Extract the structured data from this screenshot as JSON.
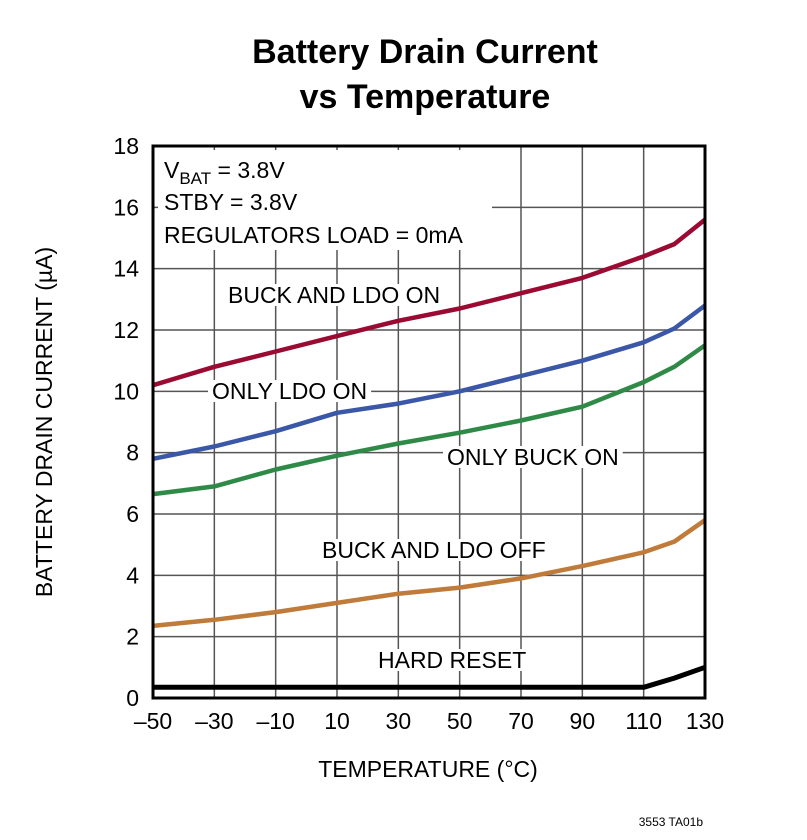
{
  "chart_data": {
    "type": "line",
    "title": [
      "Battery Drain Current",
      "vs Temperature"
    ],
    "xlabel": "TEMPERATURE (°C)",
    "ylabel": "BATTERY DRAIN CURRENT (µA)",
    "xlim": [
      -50,
      130
    ],
    "ylim": [
      0,
      18
    ],
    "xticks": [
      -50,
      -30,
      -10,
      10,
      30,
      50,
      70,
      90,
      110,
      130
    ],
    "xtick_labels": [
      "–50",
      "–30",
      "–10",
      "10",
      "30",
      "50",
      "70",
      "90",
      "110",
      "130"
    ],
    "yticks": [
      0,
      2,
      4,
      6,
      8,
      10,
      12,
      14,
      16,
      18
    ],
    "grid": true,
    "conditions": {
      "vbat_prefix": "V",
      "vbat_sub": "BAT",
      "vbat_value": " = 3.8V",
      "stby": "STBY = 3.8V",
      "load": "REGULATORS LOAD = 0mA"
    },
    "x": [
      -50,
      -30,
      -10,
      10,
      30,
      50,
      70,
      90,
      110,
      120,
      130
    ],
    "series": [
      {
        "name": "BUCK AND LDO ON",
        "color": "#9b0a32",
        "values": [
          10.2,
          10.8,
          11.3,
          11.8,
          12.3,
          12.7,
          13.2,
          13.7,
          14.4,
          14.8,
          15.6
        ]
      },
      {
        "name": "ONLY LDO ON",
        "color": "#3a57a8",
        "values": [
          7.8,
          8.2,
          8.7,
          9.3,
          9.6,
          10.0,
          10.5,
          11.0,
          11.6,
          12.05,
          12.8
        ]
      },
      {
        "name": "ONLY BUCK ON",
        "color": "#2f8a48",
        "values": [
          6.65,
          6.9,
          7.45,
          7.9,
          8.3,
          8.65,
          9.05,
          9.5,
          10.3,
          10.8,
          11.5
        ]
      },
      {
        "name": "BUCK AND LDO OFF",
        "color": "#c07a3a",
        "values": [
          2.35,
          2.55,
          2.8,
          3.1,
          3.4,
          3.6,
          3.9,
          4.3,
          4.75,
          5.1,
          5.8
        ]
      },
      {
        "name": "HARD RESET",
        "color": "#000000",
        "values": [
          0.35,
          0.35,
          0.35,
          0.35,
          0.35,
          0.35,
          0.35,
          0.35,
          0.35,
          0.65,
          1.0
        ]
      }
    ]
  },
  "footnote": "3553 TA01b"
}
